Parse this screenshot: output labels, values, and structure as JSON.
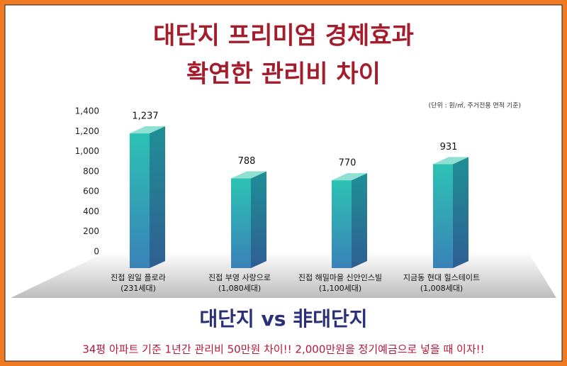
{
  "chart_data": {
    "type": "bar3d",
    "title": [
      "대단지 프리미엄 경제효과",
      "확연한 관리비 차이"
    ],
    "unit_note": "(단위 : 원/㎡, 주거전용 면적 기준)",
    "categories": [
      "진접 원일 플로라",
      "진접 부영 사랑으로",
      "진접 해밀마을 신안인스빌",
      "지금동 현대 힐스테이트"
    ],
    "category_notes": [
      "(231세대)",
      "(1,080세대)",
      "(1,100세대)",
      "(1,008세대)"
    ],
    "values": [
      1237,
      788,
      770,
      931
    ],
    "value_labels": [
      "1,237",
      "788",
      "770",
      "931"
    ],
    "color": "#2bb5ae",
    "ylim": [
      0,
      1400
    ],
    "yticks": [
      0,
      200,
      400,
      600,
      800,
      {
        "value": 1000,
        "label": "1,000"
      },
      {
        "value": 1200,
        "label": "1,200"
      },
      {
        "value": 1400,
        "label": "1,400"
      }
    ],
    "grid": false,
    "headline": "대단지 vs 非대단지",
    "footnote": "34평 아파트 기준 1년간 관리비 50만원 차이!!  2,000만원을 정기예금으로 넣을 때 이자!!"
  }
}
